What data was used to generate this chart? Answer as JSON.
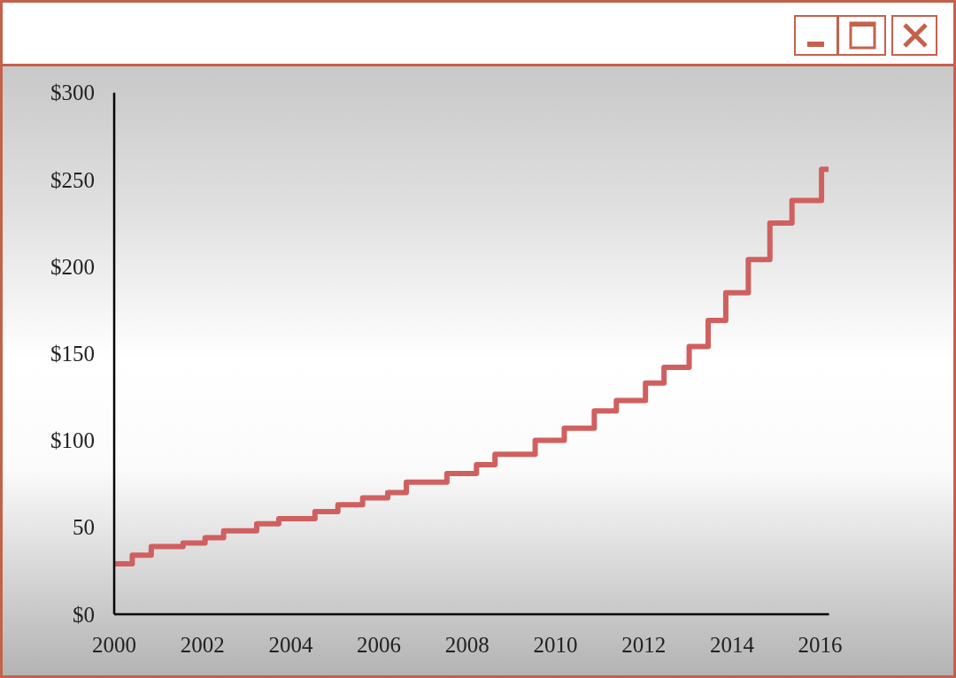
{
  "chart_data": {
    "type": "step",
    "x": [
      2000,
      2000.41,
      2000.84,
      2001.56,
      2002.06,
      2002.48,
      2003.23,
      2003.73,
      2004.55,
      2005.07,
      2005.63,
      2006.2,
      2006.62,
      2007.54,
      2008.21,
      2008.63,
      2009.54,
      2010.2,
      2010.88,
      2011.38,
      2012.04,
      2012.46,
      2013.03,
      2013.46,
      2013.86,
      2014.37,
      2014.86,
      2015.36,
      2016.03,
      2016.19
    ],
    "series": [
      {
        "color": "#d0605f",
        "values": [
          29,
          34,
          39,
          41,
          44,
          48,
          52,
          55,
          59,
          63,
          67,
          70,
          76,
          81,
          86,
          92,
          100,
          107,
          117,
          123,
          133,
          142,
          154,
          169,
          185,
          204,
          225,
          238,
          256,
          256
        ]
      }
    ],
    "xlim": [
      2000,
      2016.2
    ],
    "ylim": [
      0,
      300
    ],
    "xticks": [
      2000,
      2002,
      2004,
      2006,
      2008,
      2010,
      2012,
      2014,
      2016
    ],
    "yticks": [
      {
        "value": 0,
        "label": "$0"
      },
      {
        "value": 50,
        "label": "50"
      },
      {
        "value": 100,
        "label": "$100"
      },
      {
        "value": 150,
        "label": "$150"
      },
      {
        "value": 200,
        "label": "$200"
      },
      {
        "value": 250,
        "label": "$250"
      },
      {
        "value": 300,
        "label": "$300"
      }
    ]
  }
}
